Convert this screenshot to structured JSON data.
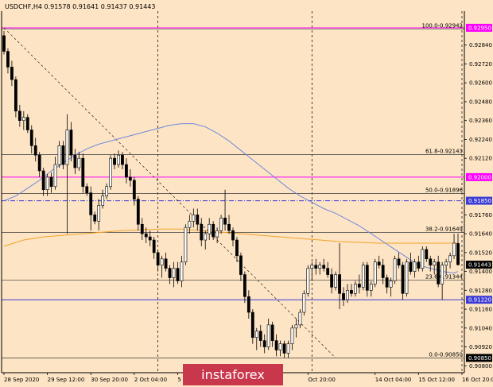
{
  "chart_data": {
    "type": "candlestick",
    "header": "USDCHF,H4  0.91578 0.91641 0.91437 0.91443",
    "y_axis": {
      "range": [
        0.90756,
        0.93056
      ],
      "ticks": [
        "0.92840",
        "0.92720",
        "0.92600",
        "0.92480",
        "0.92360",
        "0.92240",
        "0.92120",
        "0.91760",
        "0.91640",
        "0.91520",
        "0.91400",
        "0.91280",
        "0.91160",
        "0.91040",
        "0.90920",
        "0.90800"
      ]
    },
    "x_axis": {
      "labels": [
        "28 Sep 2020",
        "29 Sep 12:00",
        "30 Sep 20:00",
        "2 Oct 04:00",
        "5 Oct 12:00",
        "Oct 20:00",
        "14 Oct 04:00",
        "15 Oct 12:00",
        "16 Oct 20:00"
      ],
      "label_positions": [
        0,
        11,
        22,
        33,
        44,
        77,
        94,
        105,
        116
      ]
    },
    "price_tags": [
      {
        "text": "0.92950",
        "value": 0.9295,
        "color": "#ff00ff"
      },
      {
        "text": "0.92000",
        "value": 0.92,
        "color": "#ff00ff"
      },
      {
        "text": "0.91850",
        "value": 0.9185,
        "color": "#3b3bd6"
      },
      {
        "text": "0.91443",
        "value": 0.91443,
        "color": "#000000"
      },
      {
        "text": "0.91220",
        "value": 0.9122,
        "color": "#3b3bd6"
      },
      {
        "text": "0.90850",
        "value": 0.9085,
        "color": "#000000"
      }
    ],
    "fib_levels": [
      {
        "label": "100.0-0.92942",
        "value": 0.92942
      },
      {
        "label": "61.8-0.92143",
        "value": 0.92143
      },
      {
        "label": "50.0-0.91896",
        "value": 0.91896
      },
      {
        "label": "38.2-0.91649",
        "value": 0.91649
      },
      {
        "label": "23.6-0.91344",
        "value": 0.91344
      },
      {
        "label": "0.0-0.90850",
        "value": 0.9085
      }
    ],
    "horizontal_lines": [
      {
        "value": 0.9295,
        "color": "#ff00ff"
      },
      {
        "value": 0.92,
        "color": "#ff00ff"
      },
      {
        "value": 0.9185,
        "color": "#3b3bd6",
        "dash": "dashdot"
      },
      {
        "value": 0.9122,
        "color": "#3b3bd6"
      }
    ],
    "vertical_markers": [
      39,
      78,
      116
    ],
    "trendline": {
      "from": [
        0,
        0.9295
      ],
      "to": [
        84,
        0.9085
      ]
    },
    "candles": [
      [
        0.929,
        0.9293,
        0.9278,
        0.928
      ],
      [
        0.928,
        0.9282,
        0.9266,
        0.927
      ],
      [
        0.927,
        0.9274,
        0.9258,
        0.9262
      ],
      [
        0.9262,
        0.9264,
        0.9238,
        0.9242
      ],
      [
        0.9242,
        0.9246,
        0.9232,
        0.9236
      ],
      [
        0.9236,
        0.9242,
        0.923,
        0.9238
      ],
      [
        0.9238,
        0.924,
        0.9228,
        0.923
      ],
      [
        0.923,
        0.9233,
        0.9215,
        0.922
      ],
      [
        0.922,
        0.9225,
        0.921,
        0.9214
      ],
      [
        0.9214,
        0.9216,
        0.92,
        0.9204
      ],
      [
        0.9204,
        0.9206,
        0.9188,
        0.9192
      ],
      [
        0.9192,
        0.9202,
        0.9188,
        0.92
      ],
      [
        0.92,
        0.9203,
        0.919,
        0.9194
      ],
      [
        0.9194,
        0.9213,
        0.9192,
        0.9208
      ],
      [
        0.9208,
        0.9223,
        0.9206,
        0.922
      ],
      [
        0.922,
        0.9223,
        0.9205,
        0.9208
      ],
      [
        0.9208,
        0.924,
        0.9164,
        0.923
      ],
      [
        0.923,
        0.9235,
        0.921,
        0.9214
      ],
      [
        0.9214,
        0.9218,
        0.9202,
        0.9206
      ],
      [
        0.9206,
        0.9216,
        0.9204,
        0.9212
      ],
      [
        0.9212,
        0.9215,
        0.919,
        0.9194
      ],
      [
        0.9194,
        0.9196,
        0.9188,
        0.919
      ],
      [
        0.919,
        0.9194,
        0.9166,
        0.9176
      ],
      [
        0.9176,
        0.9178,
        0.917,
        0.9172
      ],
      [
        0.9172,
        0.9186,
        0.9166,
        0.9182
      ],
      [
        0.9182,
        0.9192,
        0.918,
        0.9188
      ],
      [
        0.9188,
        0.9196,
        0.9186,
        0.9194
      ],
      [
        0.9194,
        0.9214,
        0.9192,
        0.9212
      ],
      [
        0.9212,
        0.9215,
        0.9205,
        0.9208
      ],
      [
        0.9208,
        0.9217,
        0.9206,
        0.9214
      ],
      [
        0.9214,
        0.9216,
        0.9205,
        0.9208
      ],
      [
        0.9208,
        0.9212,
        0.9196,
        0.92
      ],
      [
        0.92,
        0.9205,
        0.9194,
        0.9198
      ],
      [
        0.9198,
        0.92,
        0.9182,
        0.9186
      ],
      [
        0.9186,
        0.9188,
        0.9166,
        0.917
      ],
      [
        0.917,
        0.9174,
        0.916,
        0.9164
      ],
      [
        0.9164,
        0.9168,
        0.9158,
        0.9162
      ],
      [
        0.9162,
        0.9166,
        0.9156,
        0.916
      ],
      [
        0.916,
        0.9162,
        0.9148,
        0.9152
      ],
      [
        0.9152,
        0.9154,
        0.914,
        0.9144
      ],
      [
        0.9144,
        0.915,
        0.9136,
        0.9148
      ],
      [
        0.9148,
        0.9152,
        0.914,
        0.9142
      ],
      [
        0.9142,
        0.9144,
        0.9132,
        0.9136
      ],
      [
        0.9136,
        0.9146,
        0.913,
        0.9142
      ],
      [
        0.9142,
        0.9146,
        0.9132,
        0.9134
      ],
      [
        0.9134,
        0.915,
        0.913,
        0.9146
      ],
      [
        0.9146,
        0.917,
        0.9144,
        0.9168
      ],
      [
        0.9168,
        0.9176,
        0.9164,
        0.9172
      ],
      [
        0.9172,
        0.918,
        0.9168,
        0.9176
      ],
      [
        0.9176,
        0.918,
        0.9166,
        0.917
      ],
      [
        0.917,
        0.9174,
        0.9156,
        0.916
      ],
      [
        0.916,
        0.9166,
        0.9154,
        0.9164
      ],
      [
        0.9164,
        0.9174,
        0.916,
        0.917
      ],
      [
        0.917,
        0.9172,
        0.916,
        0.9162
      ],
      [
        0.9162,
        0.9168,
        0.9158,
        0.9166
      ],
      [
        0.9166,
        0.9176,
        0.9164,
        0.9174
      ],
      [
        0.9174,
        0.9192,
        0.9166,
        0.917
      ],
      [
        0.917,
        0.9176,
        0.9164,
        0.9166
      ],
      [
        0.9166,
        0.9168,
        0.9156,
        0.916
      ],
      [
        0.916,
        0.9162,
        0.9146,
        0.915
      ],
      [
        0.915,
        0.9152,
        0.9134,
        0.9138
      ],
      [
        0.9138,
        0.914,
        0.912,
        0.9124
      ],
      [
        0.9124,
        0.9128,
        0.911,
        0.9114
      ],
      [
        0.9114,
        0.9116,
        0.9094,
        0.9098
      ],
      [
        0.9098,
        0.9104,
        0.909,
        0.9102
      ],
      [
        0.9102,
        0.9106,
        0.9092,
        0.9096
      ],
      [
        0.9096,
        0.91,
        0.9088,
        0.9092
      ],
      [
        0.9092,
        0.911,
        0.909,
        0.9106
      ],
      [
        0.9106,
        0.9108,
        0.9092,
        0.9096
      ],
      [
        0.9096,
        0.91,
        0.9086,
        0.909
      ],
      [
        0.909,
        0.9096,
        0.9086,
        0.9094
      ],
      [
        0.9094,
        0.9096,
        0.9085,
        0.9088
      ],
      [
        0.9088,
        0.9096,
        0.9085,
        0.9094
      ],
      [
        0.9094,
        0.9106,
        0.909,
        0.9104
      ],
      [
        0.9104,
        0.911,
        0.9098,
        0.9106
      ],
      [
        0.9106,
        0.9116,
        0.9104,
        0.9114
      ],
      [
        0.9114,
        0.9128,
        0.9112,
        0.9126
      ],
      [
        0.9126,
        0.9144,
        0.9124,
        0.9142
      ],
      [
        0.9142,
        0.9146,
        0.9134,
        0.9144
      ],
      [
        0.9144,
        0.9148,
        0.9138,
        0.9142
      ],
      [
        0.9142,
        0.9146,
        0.9138,
        0.9144
      ],
      [
        0.9144,
        0.9148,
        0.914,
        0.9142
      ],
      [
        0.9142,
        0.9146,
        0.9136,
        0.9138
      ],
      [
        0.9138,
        0.9142,
        0.9126,
        0.913
      ],
      [
        0.913,
        0.914,
        0.9128,
        0.9138
      ],
      [
        0.9138,
        0.9158,
        0.9116,
        0.9126
      ],
      [
        0.9126,
        0.913,
        0.9118,
        0.9122
      ],
      [
        0.9122,
        0.9132,
        0.912,
        0.9128
      ],
      [
        0.9128,
        0.9132,
        0.9124,
        0.9126
      ],
      [
        0.9126,
        0.9134,
        0.9124,
        0.9132
      ],
      [
        0.9132,
        0.9138,
        0.9126,
        0.913
      ],
      [
        0.913,
        0.9146,
        0.9128,
        0.9144
      ],
      [
        0.9144,
        0.9146,
        0.9124,
        0.9128
      ],
      [
        0.9128,
        0.9134,
        0.9124,
        0.9132
      ],
      [
        0.9132,
        0.9148,
        0.913,
        0.9146
      ],
      [
        0.9146,
        0.915,
        0.9142,
        0.9144
      ],
      [
        0.9144,
        0.9148,
        0.9132,
        0.9136
      ],
      [
        0.9136,
        0.9138,
        0.9126,
        0.913
      ],
      [
        0.913,
        0.9136,
        0.9124,
        0.9134
      ],
      [
        0.9134,
        0.915,
        0.9132,
        0.9148
      ],
      [
        0.9148,
        0.9152,
        0.9142,
        0.9144
      ],
      [
        0.9144,
        0.9146,
        0.9122,
        0.9126
      ],
      [
        0.9126,
        0.9148,
        0.9124,
        0.9146
      ],
      [
        0.9146,
        0.9152,
        0.9138,
        0.914
      ],
      [
        0.914,
        0.9148,
        0.9136,
        0.9146
      ],
      [
        0.9146,
        0.915,
        0.914,
        0.9142
      ],
      [
        0.9142,
        0.9156,
        0.914,
        0.9154
      ],
      [
        0.9154,
        0.9156,
        0.9146,
        0.9148
      ],
      [
        0.9148,
        0.915,
        0.914,
        0.9144
      ],
      [
        0.9144,
        0.9148,
        0.9138,
        0.9146
      ],
      [
        0.9146,
        0.915,
        0.913,
        0.9132
      ],
      [
        0.9132,
        0.9146,
        0.9122,
        0.9144
      ],
      [
        0.9144,
        0.9148,
        0.9138,
        0.9146
      ],
      [
        0.9146,
        0.9152,
        0.9142,
        0.915
      ],
      [
        0.915,
        0.9164,
        0.9148,
        0.9158
      ],
      [
        0.91578,
        0.91641,
        0.91437,
        0.91443
      ]
    ],
    "ma_blue": [
      0.9185,
      0.9188,
      0.9193,
      0.9198,
      0.9204,
      0.9209,
      0.9214,
      0.9218,
      0.9221,
      0.9223,
      0.9225,
      0.9227,
      0.9229,
      0.9231,
      0.9233,
      0.9234,
      0.9234,
      0.9232,
      0.9228,
      0.9223,
      0.9217,
      0.9211,
      0.9205,
      0.9199,
      0.9193,
      0.9188,
      0.9184,
      0.918,
      0.9177,
      0.9173,
      0.9169,
      0.9164,
      0.9159,
      0.9154,
      0.9149,
      0.9144,
      0.9142,
      0.914,
      0.9139,
      0.914
    ],
    "ma_blue_step": 3,
    "ma_orange": [
      0.9156,
      0.916,
      0.9162,
      0.9163,
      0.9164,
      0.9165,
      0.9166,
      0.91665,
      0.9167,
      0.9167,
      0.9166,
      0.9165,
      0.9164,
      0.9163,
      0.9162,
      0.9161,
      0.916,
      0.9159,
      0.91585,
      0.9158,
      0.9158,
      0.9158,
      0.9158,
      0.9158
    ],
    "ma_orange_step": 5
  },
  "watermark": "instaforex"
}
